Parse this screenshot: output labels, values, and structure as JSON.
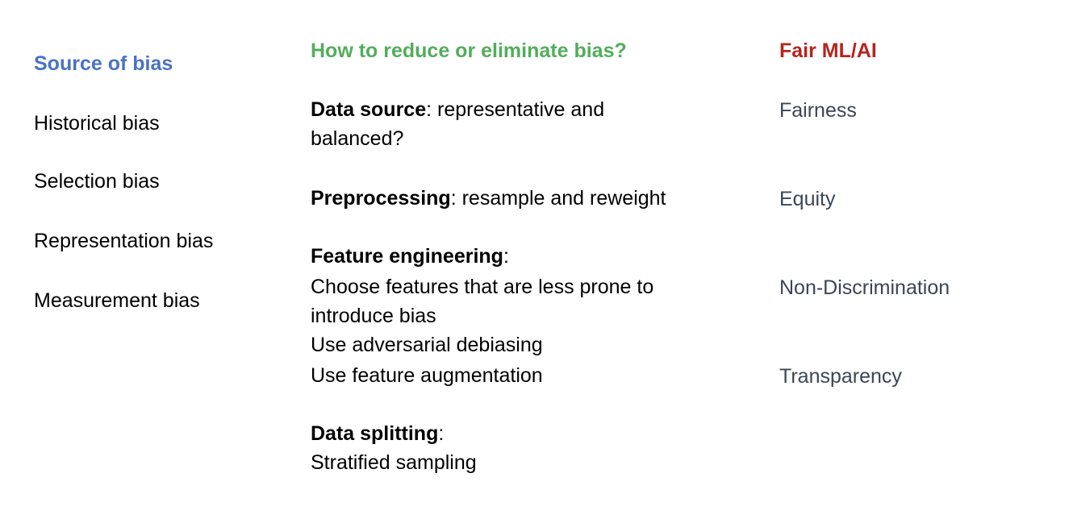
{
  "colors": {
    "source_heading": "#4a72c4",
    "reduce_heading": "#52ad5b",
    "fair_heading": "#b3261e",
    "right_text": "#3b4656"
  },
  "left": {
    "heading": "Source of bias",
    "items": [
      "Historical bias",
      "Selection bias",
      "Representation bias",
      "Measurement bias"
    ]
  },
  "middle": {
    "heading": "How to reduce or eliminate bias?",
    "data_source": {
      "term": "Data source",
      "colon": ":",
      "line1": " representative and",
      "line2": "balanced?"
    },
    "preprocessing": {
      "term": "Preprocessing",
      "colon": ":",
      "rest": " resample and reweight"
    },
    "feature_engineering": {
      "term": "Feature engineering",
      "colon": ":",
      "lines": [
        "Choose features that are less prone to",
        "introduce bias",
        "Use adversarial debiasing",
        "Use feature augmentation"
      ]
    },
    "data_splitting": {
      "term": "Data splitting",
      "colon": ":",
      "line": "Stratified sampling"
    }
  },
  "right": {
    "heading": "Fair ML/AI",
    "items": [
      "Fairness",
      "Equity",
      "Non-Discrimination",
      "Transparency"
    ]
  }
}
